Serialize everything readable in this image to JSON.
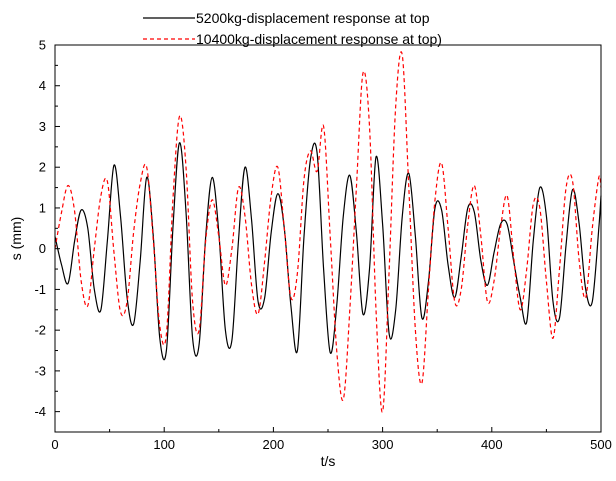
{
  "chart_data": {
    "type": "line",
    "xlabel": "t/s",
    "ylabel": "s (mm)",
    "xlim": [
      0,
      500
    ],
    "ylim": [
      -4.5,
      5
    ],
    "x_ticks": [
      0,
      100,
      200,
      300,
      400,
      500
    ],
    "y_ticks": [
      -4,
      -3,
      -2,
      -1,
      0,
      1,
      2,
      3,
      4,
      5
    ],
    "grid": false,
    "legend_position": "top",
    "series": [
      {
        "name": "5200kg-displacement response at top",
        "color": "#000000",
        "style": "solid",
        "points": [
          [
            0,
            0.3
          ],
          [
            6,
            -0.4
          ],
          [
            12,
            -0.85
          ],
          [
            18,
            0.2
          ],
          [
            24,
            0.95
          ],
          [
            30,
            0.5
          ],
          [
            36,
            -1.0
          ],
          [
            42,
            -1.5
          ],
          [
            48,
            0.2
          ],
          [
            54,
            2.05
          ],
          [
            60,
            0.8
          ],
          [
            66,
            -1.2
          ],
          [
            72,
            -1.85
          ],
          [
            78,
            -0.3
          ],
          [
            84,
            1.75
          ],
          [
            90,
            0.3
          ],
          [
            96,
            -2.2
          ],
          [
            102,
            -2.5
          ],
          [
            108,
            0.5
          ],
          [
            114,
            2.6
          ],
          [
            120,
            0.9
          ],
          [
            126,
            -2.2
          ],
          [
            132,
            -2.35
          ],
          [
            138,
            0.3
          ],
          [
            144,
            1.75
          ],
          [
            150,
            0.4
          ],
          [
            156,
            -2.0
          ],
          [
            162,
            -2.25
          ],
          [
            168,
            0.2
          ],
          [
            174,
            2.0
          ],
          [
            180,
            0.7
          ],
          [
            186,
            -1.3
          ],
          [
            192,
            -1.2
          ],
          [
            198,
            0.4
          ],
          [
            204,
            1.35
          ],
          [
            210,
            0.5
          ],
          [
            216,
            -1.4
          ],
          [
            222,
            -2.5
          ],
          [
            228,
            0.3
          ],
          [
            234,
            2.2
          ],
          [
            240,
            2.35
          ],
          [
            246,
            -0.5
          ],
          [
            252,
            -2.55
          ],
          [
            258,
            -1.4
          ],
          [
            264,
            0.8
          ],
          [
            270,
            1.8
          ],
          [
            276,
            0.4
          ],
          [
            282,
            -1.6
          ],
          [
            288,
            -0.5
          ],
          [
            294,
            2.25
          ],
          [
            300,
            0.6
          ],
          [
            306,
            -2.1
          ],
          [
            312,
            -1.5
          ],
          [
            318,
            0.8
          ],
          [
            324,
            1.85
          ],
          [
            330,
            0.3
          ],
          [
            336,
            -1.7
          ],
          [
            342,
            -0.8
          ],
          [
            348,
            1.0
          ],
          [
            354,
            0.95
          ],
          [
            360,
            -0.4
          ],
          [
            366,
            -1.2
          ],
          [
            372,
            -0.2
          ],
          [
            378,
            1.0
          ],
          [
            384,
            0.9
          ],
          [
            390,
            -0.3
          ],
          [
            396,
            -0.9
          ],
          [
            402,
            -0.1
          ],
          [
            408,
            0.6
          ],
          [
            414,
            0.6
          ],
          [
            420,
            -0.3
          ],
          [
            426,
            -1.2
          ],
          [
            432,
            -1.8
          ],
          [
            438,
            0.2
          ],
          [
            444,
            1.5
          ],
          [
            450,
            0.8
          ],
          [
            456,
            -1.3
          ],
          [
            462,
            -1.7
          ],
          [
            468,
            0.1
          ],
          [
            474,
            1.45
          ],
          [
            480,
            0.6
          ],
          [
            486,
            -1.0
          ],
          [
            492,
            -1.3
          ],
          [
            498,
            0.5
          ],
          [
            500,
            1.3
          ]
        ]
      },
      {
        "name": "10400kg-displacement response at top)",
        "color": "#ff0000",
        "style": "dashed",
        "points": [
          [
            0,
            0.0
          ],
          [
            6,
            0.9
          ],
          [
            12,
            1.55
          ],
          [
            18,
            0.9
          ],
          [
            24,
            -0.8
          ],
          [
            30,
            -1.4
          ],
          [
            36,
            0.0
          ],
          [
            42,
            1.3
          ],
          [
            48,
            1.65
          ],
          [
            54,
            -0.1
          ],
          [
            60,
            -1.55
          ],
          [
            66,
            -1.3
          ],
          [
            72,
            0.4
          ],
          [
            78,
            1.6
          ],
          [
            84,
            2.0
          ],
          [
            90,
            0.2
          ],
          [
            96,
            -1.9
          ],
          [
            102,
            -2.1
          ],
          [
            108,
            1.2
          ],
          [
            114,
            3.25
          ],
          [
            120,
            2.0
          ],
          [
            126,
            -1.3
          ],
          [
            132,
            -2.0
          ],
          [
            138,
            0.2
          ],
          [
            144,
            1.2
          ],
          [
            150,
            0.3
          ],
          [
            156,
            -0.9
          ],
          [
            162,
            0.0
          ],
          [
            168,
            1.5
          ],
          [
            174,
            0.8
          ],
          [
            180,
            -0.9
          ],
          [
            186,
            -1.6
          ],
          [
            192,
            -0.3
          ],
          [
            198,
            1.3
          ],
          [
            204,
            2.0
          ],
          [
            210,
            0.5
          ],
          [
            216,
            -1.2
          ],
          [
            222,
            -0.6
          ],
          [
            228,
            1.7
          ],
          [
            234,
            2.4
          ],
          [
            240,
            1.9
          ],
          [
            246,
            3.0
          ],
          [
            252,
            0.3
          ],
          [
            258,
            -2.5
          ],
          [
            264,
            -3.7
          ],
          [
            270,
            -1.5
          ],
          [
            276,
            1.5
          ],
          [
            282,
            4.3
          ],
          [
            288,
            3.0
          ],
          [
            294,
            -1.5
          ],
          [
            300,
            -4.0
          ],
          [
            306,
            -0.5
          ],
          [
            312,
            3.5
          ],
          [
            318,
            4.75
          ],
          [
            324,
            1.5
          ],
          [
            330,
            -2.0
          ],
          [
            336,
            -3.3
          ],
          [
            342,
            -1.0
          ],
          [
            348,
            1.2
          ],
          [
            354,
            2.1
          ],
          [
            360,
            0.5
          ],
          [
            366,
            -1.3
          ],
          [
            372,
            -1.0
          ],
          [
            378,
            0.6
          ],
          [
            384,
            1.55
          ],
          [
            390,
            0.3
          ],
          [
            396,
            -1.3
          ],
          [
            402,
            -0.8
          ],
          [
            408,
            0.5
          ],
          [
            414,
            1.3
          ],
          [
            420,
            -0.2
          ],
          [
            426,
            -1.5
          ],
          [
            432,
            -0.5
          ],
          [
            438,
            1.1
          ],
          [
            444,
            1.0
          ],
          [
            450,
            -0.8
          ],
          [
            456,
            -2.2
          ],
          [
            462,
            -0.5
          ],
          [
            468,
            1.5
          ],
          [
            474,
            1.65
          ],
          [
            480,
            -0.3
          ],
          [
            486,
            -1.2
          ],
          [
            492,
            0.5
          ],
          [
            498,
            1.75
          ],
          [
            500,
            1.5
          ]
        ]
      }
    ]
  }
}
